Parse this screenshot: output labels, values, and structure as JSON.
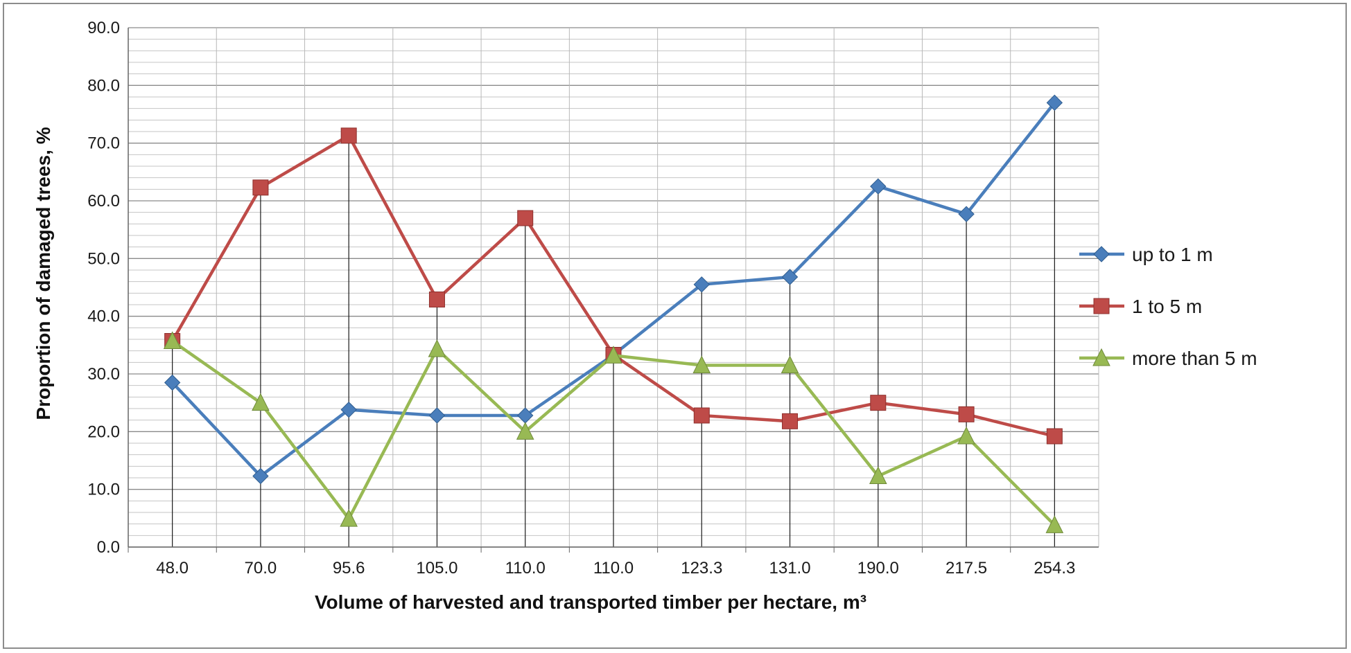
{
  "chart_data": {
    "type": "line",
    "title": "",
    "xlabel": "Volume of harvested and transported timber per hectare, m³",
    "ylabel": "Proportion of damaged trees, %",
    "categories": [
      "48.0",
      "70.0",
      "95.6",
      "105.0",
      "110.0",
      "110.0",
      "123.3",
      "131.0",
      "190.0",
      "217.5",
      "254.3"
    ],
    "ylim": [
      0,
      90
    ],
    "yticks": [
      "0.0",
      "10.0",
      "20.0",
      "30.0",
      "40.0",
      "50.0",
      "60.0",
      "70.0",
      "80.0",
      "90.0"
    ],
    "grid": true,
    "legend_position": "right",
    "series": [
      {
        "name": "up to 1 m",
        "color": "#4a7ebb",
        "marker": "diamond",
        "values": [
          28.5,
          12.3,
          23.8,
          22.8,
          22.8,
          33.3,
          45.5,
          46.8,
          62.5,
          57.7,
          77.0
        ]
      },
      {
        "name": "1 to 5 m",
        "color": "#be4b48",
        "marker": "square",
        "values": [
          35.7,
          62.3,
          71.3,
          42.9,
          57.0,
          33.3,
          22.8,
          21.8,
          25.0,
          23.0,
          19.2
        ]
      },
      {
        "name": "more than 5 m",
        "color": "#98b954",
        "marker": "triangle",
        "values": [
          35.7,
          25.0,
          4.9,
          34.3,
          20.0,
          33.2,
          31.5,
          31.5,
          12.3,
          19.2,
          3.8
        ]
      }
    ]
  }
}
